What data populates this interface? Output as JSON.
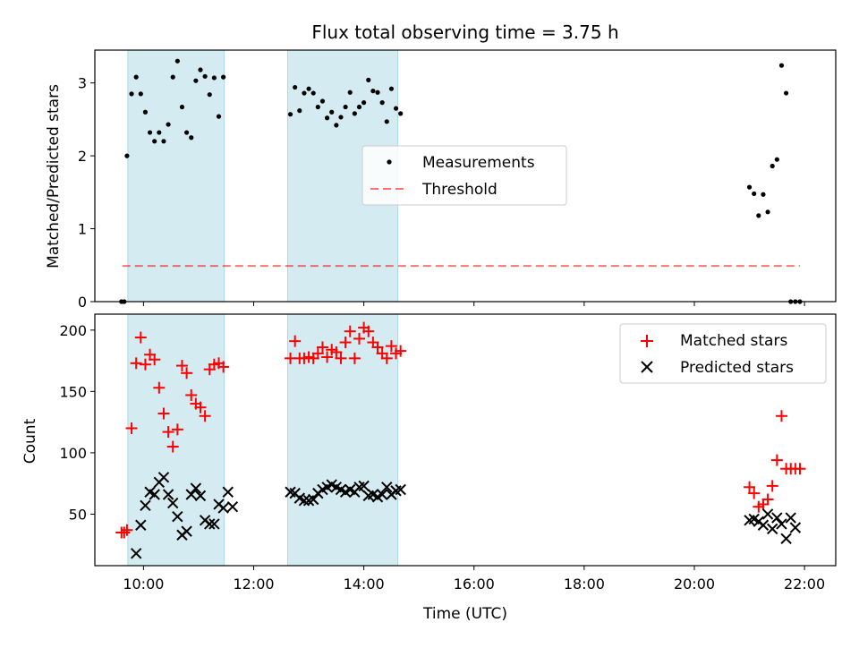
{
  "chart_data": [
    {
      "type": "scatter",
      "title": "Flux total observing time = 3.75 h",
      "xlabel": "",
      "ylabel": "Matched/Predicted stars",
      "xlim": [
        "09:07",
        "22:34"
      ],
      "ylim": [
        0,
        3.45
      ],
      "yticks": [
        "0",
        "1",
        "2",
        "3"
      ],
      "shaded_ranges": [
        [
          "09:43",
          "11:28"
        ],
        [
          "12:37",
          "14:37"
        ]
      ],
      "shade_color": "#add8e6",
      "legend": {
        "placement": "center",
        "entries": [
          "Measurements",
          "Threshold"
        ]
      },
      "threshold": {
        "name": "Threshold",
        "y": 0.49,
        "x_range": [
          "09:37",
          "21:55"
        ],
        "color": "#ff0000"
      },
      "series": [
        {
          "name": "Measurements",
          "color": "#000000",
          "marker": "dot",
          "points": [
            [
              "09:36",
              0.0
            ],
            [
              "09:39",
              0.0
            ],
            [
              "09:42",
              2.0
            ],
            [
              "09:47",
              2.85
            ],
            [
              "09:52",
              3.08
            ],
            [
              "09:57",
              2.85
            ],
            [
              "10:02",
              2.6
            ],
            [
              "10:07",
              2.32
            ],
            [
              "10:12",
              2.2
            ],
            [
              "10:17",
              2.32
            ],
            [
              "10:22",
              2.2
            ],
            [
              "10:27",
              2.43
            ],
            [
              "10:32",
              3.08
            ],
            [
              "10:37",
              3.3
            ],
            [
              "10:42",
              2.67
            ],
            [
              "10:47",
              2.32
            ],
            [
              "10:52",
              2.25
            ],
            [
              "10:57",
              3.03
            ],
            [
              "11:02",
              3.18
            ],
            [
              "11:07",
              3.09
            ],
            [
              "11:12",
              2.84
            ],
            [
              "11:17",
              3.07
            ],
            [
              "11:22",
              2.54
            ],
            [
              "11:27",
              3.08
            ],
            [
              "12:40",
              2.57
            ],
            [
              "12:45",
              2.94
            ],
            [
              "12:50",
              2.62
            ],
            [
              "12:55",
              2.86
            ],
            [
              "13:00",
              2.92
            ],
            [
              "13:05",
              2.86
            ],
            [
              "13:10",
              2.67
            ],
            [
              "13:15",
              2.75
            ],
            [
              "13:20",
              2.52
            ],
            [
              "13:25",
              2.6
            ],
            [
              "13:30",
              2.42
            ],
            [
              "13:35",
              2.53
            ],
            [
              "13:40",
              2.67
            ],
            [
              "13:45",
              2.87
            ],
            [
              "13:50",
              2.58
            ],
            [
              "13:55",
              2.67
            ],
            [
              "14:00",
              2.73
            ],
            [
              "14:05",
              3.04
            ],
            [
              "14:10",
              2.89
            ],
            [
              "14:15",
              2.87
            ],
            [
              "14:20",
              2.73
            ],
            [
              "14:25",
              2.47
            ],
            [
              "14:30",
              2.92
            ],
            [
              "14:35",
              2.65
            ],
            [
              "14:40",
              2.58
            ],
            [
              "21:00",
              1.57
            ],
            [
              "21:05",
              1.48
            ],
            [
              "21:10",
              1.18
            ],
            [
              "21:15",
              1.47
            ],
            [
              "21:20",
              1.23
            ],
            [
              "21:25",
              1.86
            ],
            [
              "21:30",
              1.95
            ],
            [
              "21:35",
              3.24
            ],
            [
              "21:40",
              2.86
            ],
            [
              "21:45",
              0.0
            ],
            [
              "21:50",
              0.0
            ],
            [
              "21:55",
              0.0
            ]
          ]
        }
      ]
    },
    {
      "type": "scatter",
      "title": "",
      "xlabel": "Time (UTC)",
      "ylabel": "Count",
      "xlim": [
        "09:07",
        "22:34"
      ],
      "ylim": [
        8,
        213
      ],
      "xticks": [
        "10:00",
        "12:00",
        "14:00",
        "16:00",
        "18:00",
        "20:00",
        "22:00"
      ],
      "yticks": [
        "50",
        "100",
        "150",
        "200"
      ],
      "shaded_ranges": [
        [
          "09:43",
          "11:28"
        ],
        [
          "12:37",
          "14:37"
        ]
      ],
      "shade_color": "#add8e6",
      "legend": {
        "placement": "top-right",
        "entries": [
          "Matched stars",
          "Predicted stars"
        ]
      },
      "series": [
        {
          "name": "Matched stars",
          "color": "#ff0000",
          "marker": "plus",
          "points": [
            [
              "09:36",
              35
            ],
            [
              "09:39",
              35
            ],
            [
              "09:42",
              37
            ],
            [
              "09:47",
              120
            ],
            [
              "09:52",
              173
            ],
            [
              "09:57",
              194
            ],
            [
              "10:02",
              172
            ],
            [
              "10:07",
              180
            ],
            [
              "10:12",
              176
            ],
            [
              "10:17",
              153
            ],
            [
              "10:22",
              132
            ],
            [
              "10:27",
              117
            ],
            [
              "10:32",
              105
            ],
            [
              "10:37",
              119
            ],
            [
              "10:42",
              171
            ],
            [
              "10:47",
              165
            ],
            [
              "10:52",
              147
            ],
            [
              "10:57",
              140
            ],
            [
              "11:02",
              137
            ],
            [
              "11:07",
              130
            ],
            [
              "11:12",
              168
            ],
            [
              "11:17",
              172
            ],
            [
              "11:22",
              173
            ],
            [
              "11:27",
              170
            ],
            [
              "12:40",
              177
            ],
            [
              "12:45",
              191
            ],
            [
              "12:50",
              177
            ],
            [
              "12:55",
              177
            ],
            [
              "13:00",
              178
            ],
            [
              "13:05",
              177
            ],
            [
              "13:10",
              181
            ],
            [
              "13:15",
              186
            ],
            [
              "13:20",
              178
            ],
            [
              "13:25",
              184
            ],
            [
              "13:30",
              182
            ],
            [
              "13:35",
              177
            ],
            [
              "13:40",
              190
            ],
            [
              "13:45",
              199
            ],
            [
              "13:50",
              177
            ],
            [
              "13:55",
              193
            ],
            [
              "14:00",
              202
            ],
            [
              "14:05",
              199
            ],
            [
              "14:10",
              190
            ],
            [
              "14:15",
              186
            ],
            [
              "14:20",
              181
            ],
            [
              "14:25",
              177
            ],
            [
              "14:30",
              187
            ],
            [
              "14:35",
              181
            ],
            [
              "14:40",
              183
            ],
            [
              "21:00",
              72
            ],
            [
              "21:05",
              67
            ],
            [
              "21:10",
              56
            ],
            [
              "21:15",
              58
            ],
            [
              "21:20",
              62
            ],
            [
              "21:25",
              73
            ],
            [
              "21:30",
              94
            ],
            [
              "21:35",
              130
            ],
            [
              "21:40",
              87
            ],
            [
              "21:45",
              87
            ],
            [
              "21:50",
              87
            ],
            [
              "21:55",
              87
            ]
          ]
        },
        {
          "name": "Predicted stars",
          "color": "#000000",
          "marker": "x",
          "points": [
            [
              "09:52",
              18
            ],
            [
              "09:57",
              41
            ],
            [
              "10:02",
              57
            ],
            [
              "10:07",
              68
            ],
            [
              "10:12",
              66
            ],
            [
              "10:17",
              76
            ],
            [
              "10:22",
              80
            ],
            [
              "10:27",
              66
            ],
            [
              "10:32",
              59
            ],
            [
              "10:37",
              48
            ],
            [
              "10:42",
              33
            ],
            [
              "10:47",
              36
            ],
            [
              "10:52",
              66
            ],
            [
              "10:57",
              71
            ],
            [
              "11:02",
              65
            ],
            [
              "11:07",
              45
            ],
            [
              "11:12",
              42
            ],
            [
              "11:17",
              42
            ],
            [
              "11:22",
              58
            ],
            [
              "11:27",
              55
            ],
            [
              "11:32",
              68
            ],
            [
              "11:37",
              56
            ],
            [
              "12:40",
              68
            ],
            [
              "12:45",
              67
            ],
            [
              "12:50",
              63
            ],
            [
              "12:55",
              61
            ],
            [
              "13:00",
              61
            ],
            [
              "13:05",
              62
            ],
            [
              "13:10",
              67
            ],
            [
              "13:15",
              70
            ],
            [
              "13:20",
              72
            ],
            [
              "13:25",
              74
            ],
            [
              "13:30",
              72
            ],
            [
              "13:35",
              70
            ],
            [
              "13:40",
              68
            ],
            [
              "13:45",
              70
            ],
            [
              "13:50",
              68
            ],
            [
              "13:55",
              72
            ],
            [
              "14:00",
              73
            ],
            [
              "14:05",
              65
            ],
            [
              "14:10",
              66
            ],
            [
              "14:15",
              64
            ],
            [
              "14:20",
              66
            ],
            [
              "14:25",
              72
            ],
            [
              "14:30",
              66
            ],
            [
              "14:35",
              69
            ],
            [
              "14:40",
              70
            ],
            [
              "21:00",
              45
            ],
            [
              "21:05",
              46
            ],
            [
              "21:10",
              44
            ],
            [
              "21:15",
              41
            ],
            [
              "21:20",
              50
            ],
            [
              "21:25",
              38
            ],
            [
              "21:30",
              47
            ],
            [
              "21:35",
              42
            ],
            [
              "21:40",
              30
            ],
            [
              "21:45",
              47
            ],
            [
              "21:50",
              39
            ]
          ]
        }
      ]
    }
  ]
}
